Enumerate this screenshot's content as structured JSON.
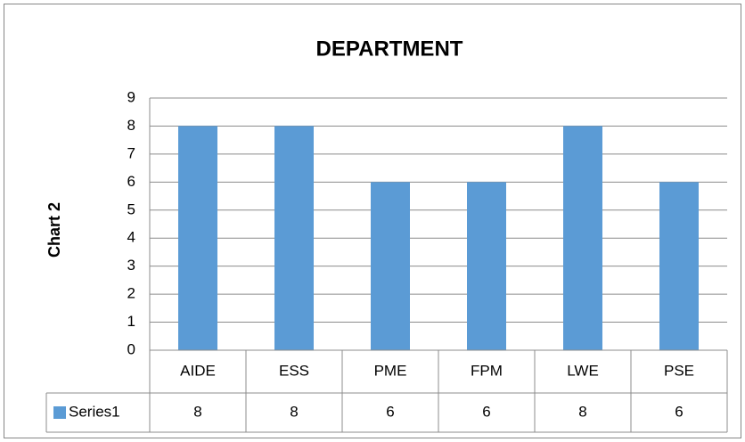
{
  "chart_data": {
    "type": "bar",
    "title": "DEPARTMENT",
    "y_axis_label": "Chart 2",
    "categories": [
      "AIDE",
      "ESS",
      "PME",
      "FPM",
      "LWE",
      "PSE"
    ],
    "series": [
      {
        "name": "Series1",
        "color": "#5b9bd5",
        "values": [
          8,
          8,
          6,
          6,
          8,
          6
        ]
      }
    ],
    "ylim": [
      0,
      9
    ],
    "yticks": [
      0,
      1,
      2,
      3,
      4,
      5,
      6,
      7,
      8,
      9
    ],
    "grid": true,
    "data_table": true
  }
}
